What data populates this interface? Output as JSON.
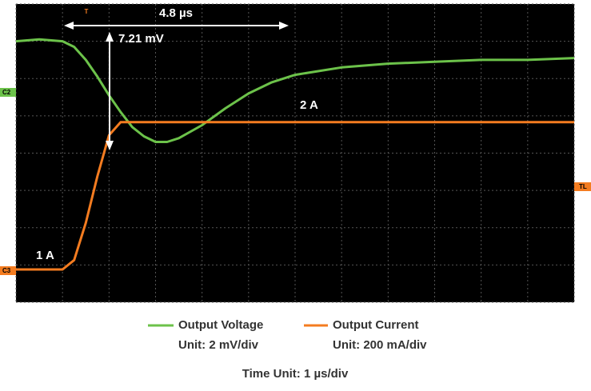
{
  "chart_data": {
    "type": "line",
    "x": [
      -1,
      -0.5,
      0,
      0.25,
      0.5,
      0.75,
      1,
      1.25,
      1.5,
      1.75,
      2,
      2.25,
      2.5,
      3,
      3.5,
      4,
      4.5,
      5,
      6,
      7,
      8,
      9,
      10,
      11
    ],
    "xlim": [
      -1,
      11
    ],
    "xticks": [
      -1,
      0,
      1,
      2,
      3,
      4,
      5,
      6,
      7,
      8,
      9,
      10,
      11
    ],
    "ylim": [
      -14,
      2
    ],
    "yticks": [
      -14,
      -12,
      -10,
      -8,
      -6,
      -4,
      -2,
      0,
      2
    ],
    "y2lim": [
      0.824,
      2.424
    ],
    "y2ticks": [],
    "grid": true,
    "series": [
      {
        "name": "Output Voltage",
        "unit": "Unit: 2 mV/div",
        "color": "#6cc24a",
        "values": [
          0,
          0.1,
          0,
          -0.3,
          -1.0,
          -1.9,
          -2.9,
          -3.8,
          -4.6,
          -5.1,
          -5.4,
          -5.4,
          -5.2,
          -4.5,
          -3.6,
          -2.8,
          -2.2,
          -1.8,
          -1.4,
          -1.2,
          -1.1,
          -1.0,
          -1.0,
          -0.9
        ]
      },
      {
        "name": "Output Current",
        "unit": "Unit: 200 mA/div",
        "color": "#f47c20",
        "axis": "y2",
        "values": [
          1,
          1,
          1,
          1.05,
          1.25,
          1.5,
          1.72,
          1.79,
          1.79,
          1.79,
          1.79,
          1.79,
          1.79,
          1.79,
          1.79,
          1.79,
          1.79,
          1.79,
          1.79,
          1.79,
          1.79,
          1.79,
          1.79,
          1.79
        ]
      }
    ],
    "annotations": {
      "time_delta": "4.8 µs",
      "voltage_dip": "7.21 mV",
      "high_current": "2 A",
      "low_current": "1 A",
      "trigger": "T",
      "ch2": "C2",
      "ch3": "C3",
      "trigger_level": "TL"
    },
    "x_unit": "Time Unit: 1 µs/div"
  }
}
